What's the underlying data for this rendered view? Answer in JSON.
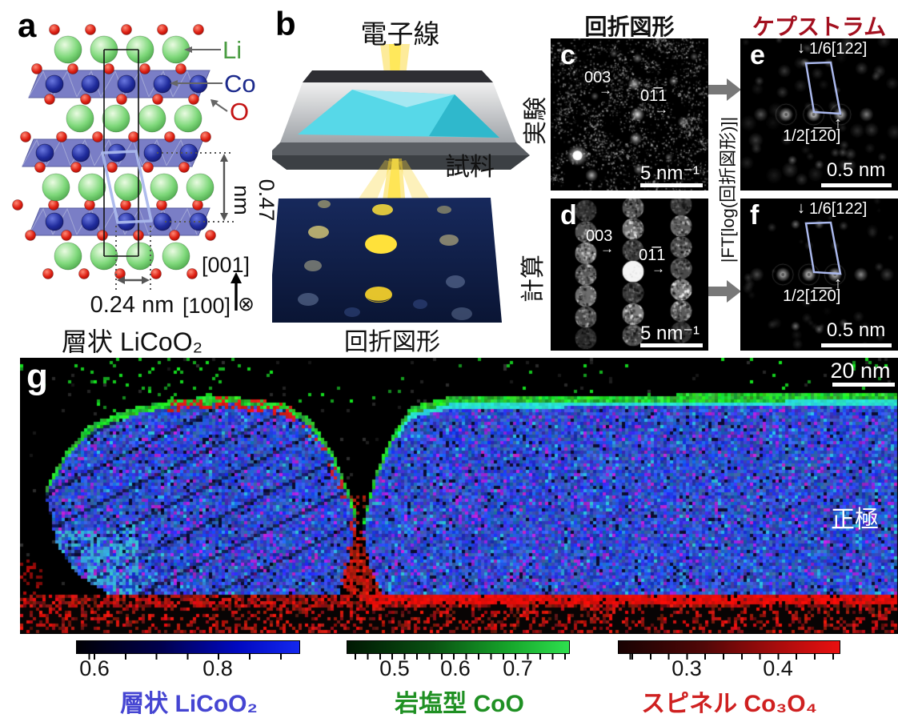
{
  "figure": {
    "panel_a": {
      "letter": "a",
      "atom_li": "Li",
      "atom_co": "Co",
      "atom_o": "O",
      "d_spacing_vertical": "0.47 nm",
      "d_spacing_horizontal": "0.24 nm",
      "axis_up": "[001]",
      "axis_right": "[100]",
      "axis_into_page": "⊗",
      "caption": "層状 LiCoO₂"
    },
    "panel_b": {
      "letter": "b",
      "electron_beam": "電子線",
      "sample": "試料",
      "caption": "回折図形"
    },
    "panel_c": {
      "letter": "c",
      "reflection_003": "003",
      "reflection_011": "01̅1",
      "scale_bar": "5 nm⁻¹"
    },
    "panel_d": {
      "letter": "d",
      "reflection_003": "003",
      "reflection_011": "01̅1",
      "scale_bar": "5 nm⁻¹"
    },
    "panel_e": {
      "letter": "e",
      "vector_top": "1/6[122]",
      "vector_bottom": "1/2[1̅2̅0]",
      "scale_bar": "0.5 nm"
    },
    "panel_f": {
      "letter": "f",
      "vector_top": "1/6[122]",
      "vector_bottom": "1/2[1̅2̅0]",
      "scale_bar": "0.5 nm"
    },
    "panel_g": {
      "letter": "g",
      "scale_bar": "20 nm",
      "annotation": "正極"
    },
    "headers": {
      "diffraction": "回折図形",
      "cepstrum": "ケプストラム",
      "row_experiment": "実験",
      "row_calculation": "計算",
      "transform": "|FT[log(回折図形)]|"
    },
    "glyphs": {
      "arrow_right": "→",
      "arrow_down": "↓",
      "arrow_up": "↑"
    }
  },
  "colorbars": {
    "layered_licoo2": {
      "tick_labels": [
        "0.6",
        "0.8"
      ],
      "caption": "層状 LiCoO₂",
      "caption_color": "#4545d2",
      "gradient_end": "#1428f0"
    },
    "rocksalt_coo": {
      "tick_labels": [
        "0.5",
        "0.6",
        "0.7"
      ],
      "caption": "岩塩型 CoO",
      "caption_color": "#1f9023",
      "gradient_end": "#2ee04e"
    },
    "spinel_co3o4": {
      "tick_labels": [
        "0.3",
        "0.4"
      ],
      "caption": "スピネル Co₃O₄",
      "caption_color": "#cf2020",
      "gradient_end": "#ea1010"
    }
  },
  "colors": {
    "cepstrum_title": "#a3101f",
    "li_label": "#4c9d44",
    "co_label": "#1c2a8c",
    "o_label": "#c41414",
    "unit_cell_overlay": "#aab8ec"
  }
}
